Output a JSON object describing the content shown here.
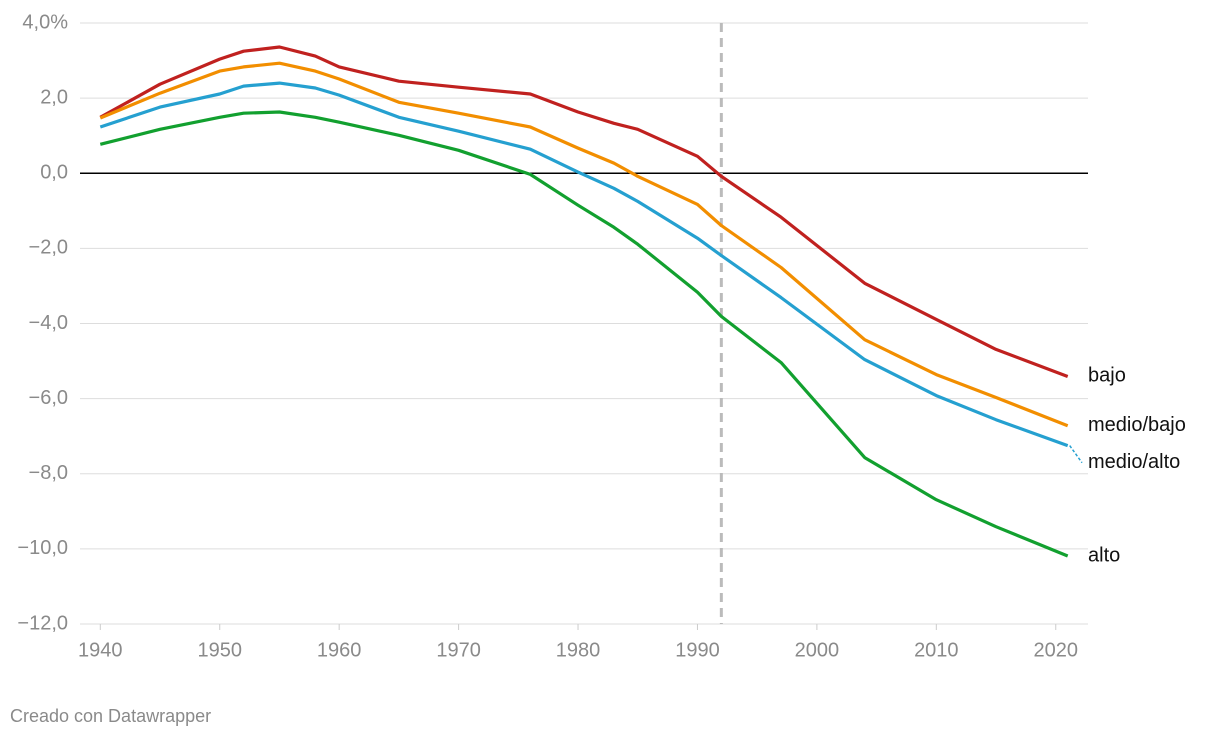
{
  "chart_data": {
    "type": "line",
    "x": [
      1940,
      1945,
      1950,
      1952,
      1955,
      1958,
      1960,
      1965,
      1970,
      1976,
      1980,
      1983,
      1985,
      1990,
      1992,
      1997,
      2004,
      2010,
      2015,
      2021
    ],
    "series": [
      {
        "name": "bajo",
        "color": "#c0211f",
        "values": [
          1.49,
          2.37,
          3.04,
          3.25,
          3.36,
          3.12,
          2.83,
          2.45,
          2.29,
          2.11,
          1.63,
          1.33,
          1.17,
          0.45,
          -0.08,
          -1.17,
          -2.93,
          -3.89,
          -4.69,
          -5.41
        ]
      },
      {
        "name": "medio/bajo",
        "color": "#f28e00",
        "values": [
          1.47,
          2.13,
          2.72,
          2.83,
          2.93,
          2.72,
          2.51,
          1.89,
          1.6,
          1.23,
          0.67,
          0.27,
          -0.08,
          -0.83,
          -1.39,
          -2.51,
          -4.43,
          -5.36,
          -5.97,
          -6.72
        ]
      },
      {
        "name": "medio/alto",
        "color": "#25a0d0",
        "values": [
          1.23,
          1.76,
          2.11,
          2.32,
          2.4,
          2.27,
          2.08,
          1.49,
          1.12,
          0.64,
          0.03,
          -0.4,
          -0.75,
          -1.73,
          -2.19,
          -3.31,
          -4.96,
          -5.92,
          -6.56,
          -7.25
        ]
      },
      {
        "name": "alto",
        "color": "#12a02f",
        "values": [
          0.77,
          1.17,
          1.49,
          1.6,
          1.63,
          1.49,
          1.36,
          1.01,
          0.61,
          -0.03,
          -0.85,
          -1.44,
          -1.89,
          -3.17,
          -3.81,
          -5.04,
          -7.57,
          -8.69,
          -9.41,
          -10.19
        ]
      }
    ],
    "xlim": [
      1938.3,
      2022.7
    ],
    "xticks": [
      1940,
      1950,
      1960,
      1970,
      1980,
      1990,
      2000,
      2010,
      2020
    ],
    "ylim": [
      -12,
      4
    ],
    "yticks": [
      {
        "value": 4,
        "label": "4,0%"
      },
      {
        "value": 2,
        "label": "2,0"
      },
      {
        "value": 0,
        "label": "0,0"
      },
      {
        "value": -2,
        "label": "−2,0"
      },
      {
        "value": -4,
        "label": "−4,0"
      },
      {
        "value": -6,
        "label": "−6,0"
      },
      {
        "value": -8,
        "label": "−8,0"
      },
      {
        "value": -10,
        "label": "−10,0"
      },
      {
        "value": -12,
        "label": "−12,0"
      }
    ],
    "grid": true,
    "vline": 1992,
    "footer": "Creado con Datawrapper"
  }
}
